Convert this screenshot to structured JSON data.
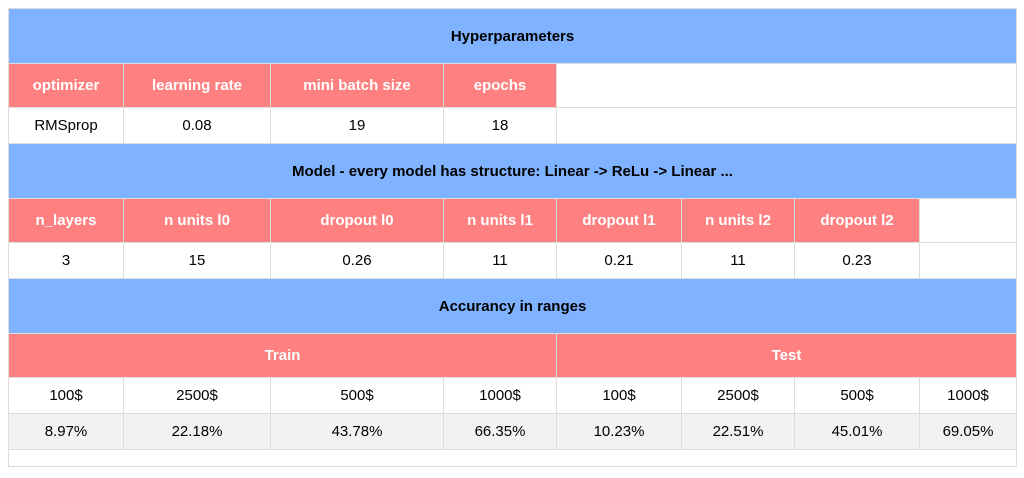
{
  "hyperparameters": {
    "title": "Hyperparameters",
    "headers": [
      "optimizer",
      "learning rate",
      "mini batch size",
      "epochs"
    ],
    "values": [
      "RMSprop",
      "0.08",
      "19",
      "18"
    ]
  },
  "model": {
    "title": "Model - every model has structure: Linear -> ReLu -> Linear ...",
    "headers": [
      "n_layers",
      "n units l0",
      "dropout l0",
      "n units l1",
      "dropout l1",
      "n units l2",
      "dropout l2"
    ],
    "values": [
      "3",
      "15",
      "0.26",
      "11",
      "0.21",
      "11",
      "0.23"
    ]
  },
  "accuracy": {
    "title": "Accurancy in ranges",
    "groups": [
      "Train",
      "Test"
    ],
    "ranges": [
      "100$",
      "2500$",
      "500$",
      "1000$",
      "100$",
      "2500$",
      "500$",
      "1000$"
    ],
    "values": [
      "8.97%",
      "22.18%",
      "43.78%",
      "66.35%",
      "10.23%",
      "22.51%",
      "45.01%",
      "69.05%"
    ]
  },
  "colors": {
    "section_bg": "#80b3ff",
    "header_bg": "#ff8080",
    "alt_row_bg": "#f2f2f2"
  }
}
